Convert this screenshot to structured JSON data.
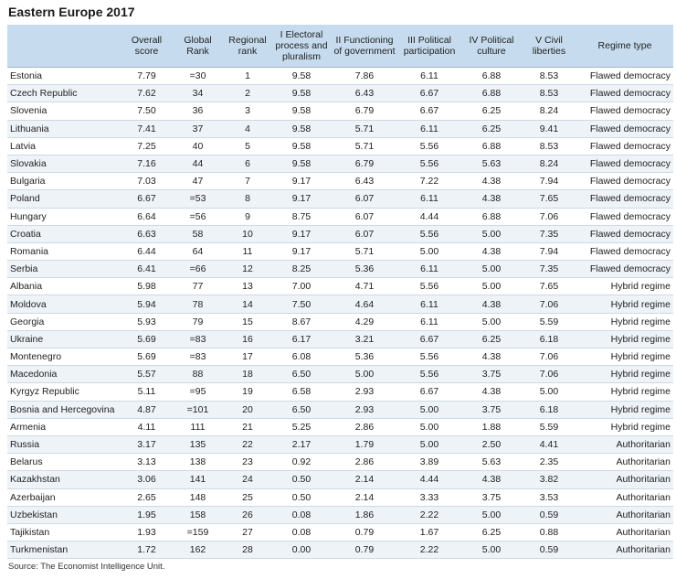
{
  "title": "Eastern Europe 2017",
  "table": {
    "header": [
      "",
      "Overall score",
      "Global Rank",
      "Regional rank",
      "I Electoral process and pluralism",
      "II Functioning of government",
      "III Political participation",
      "IV Political culture",
      "V Civil liberties",
      "Regime type"
    ],
    "rows": [
      [
        "Estonia",
        "7.79",
        "=30",
        "1",
        "9.58",
        "7.86",
        "6.11",
        "6.88",
        "8.53",
        "Flawed democracy"
      ],
      [
        "Czech Republic",
        "7.62",
        "34",
        "2",
        "9.58",
        "6.43",
        "6.67",
        "6.88",
        "8.53",
        "Flawed democracy"
      ],
      [
        "Slovenia",
        "7.50",
        "36",
        "3",
        "9.58",
        "6.79",
        "6.67",
        "6.25",
        "8.24",
        "Flawed democracy"
      ],
      [
        "Lithuania",
        "7.41",
        "37",
        "4",
        "9.58",
        "5.71",
        "6.11",
        "6.25",
        "9.41",
        "Flawed democracy"
      ],
      [
        "Latvia",
        "7.25",
        "40",
        "5",
        "9.58",
        "5.71",
        "5.56",
        "6.88",
        "8.53",
        "Flawed democracy"
      ],
      [
        "Slovakia",
        "7.16",
        "44",
        "6",
        "9.58",
        "6.79",
        "5.56",
        "5.63",
        "8.24",
        "Flawed democracy"
      ],
      [
        "Bulgaria",
        "7.03",
        "47",
        "7",
        "9.17",
        "6.43",
        "7.22",
        "4.38",
        "7.94",
        "Flawed democracy"
      ],
      [
        "Poland",
        "6.67",
        "=53",
        "8",
        "9.17",
        "6.07",
        "6.11",
        "4.38",
        "7.65",
        "Flawed democracy"
      ],
      [
        "Hungary",
        "6.64",
        "=56",
        "9",
        "8.75",
        "6.07",
        "4.44",
        "6.88",
        "7.06",
        "Flawed democracy"
      ],
      [
        "Croatia",
        "6.63",
        "58",
        "10",
        "9.17",
        "6.07",
        "5.56",
        "5.00",
        "7.35",
        "Flawed democracy"
      ],
      [
        "Romania",
        "6.44",
        "64",
        "11",
        "9.17",
        "5.71",
        "5.00",
        "4.38",
        "7.94",
        "Flawed democracy"
      ],
      [
        "Serbia",
        "6.41",
        "=66",
        "12",
        "8.25",
        "5.36",
        "6.11",
        "5.00",
        "7.35",
        "Flawed democracy"
      ],
      [
        "Albania",
        "5.98",
        "77",
        "13",
        "7.00",
        "4.71",
        "5.56",
        "5.00",
        "7.65",
        "Hybrid regime"
      ],
      [
        "Moldova",
        "5.94",
        "78",
        "14",
        "7.50",
        "4.64",
        "6.11",
        "4.38",
        "7.06",
        "Hybrid regime"
      ],
      [
        "Georgia",
        "5.93",
        "79",
        "15",
        "8.67",
        "4.29",
        "6.11",
        "5.00",
        "5.59",
        "Hybrid regime"
      ],
      [
        "Ukraine",
        "5.69",
        "=83",
        "16",
        "6.17",
        "3.21",
        "6.67",
        "6.25",
        "6.18",
        "Hybrid regime"
      ],
      [
        "Montenegro",
        "5.69",
        "=83",
        "17",
        "6.08",
        "5.36",
        "5.56",
        "4.38",
        "7.06",
        "Hybrid regime"
      ],
      [
        "Macedonia",
        "5.57",
        "88",
        "18",
        "6.50",
        "5.00",
        "5.56",
        "3.75",
        "7.06",
        "Hybrid regime"
      ],
      [
        "Kyrgyz Republic",
        "5.11",
        "=95",
        "19",
        "6.58",
        "2.93",
        "6.67",
        "4.38",
        "5.00",
        "Hybrid regime"
      ],
      [
        "Bosnia and Hercegovina",
        "4.87",
        "=101",
        "20",
        "6.50",
        "2.93",
        "5.00",
        "3.75",
        "6.18",
        "Hybrid regime"
      ],
      [
        "Armenia",
        "4.11",
        "111",
        "21",
        "5.25",
        "2.86",
        "5.00",
        "1.88",
        "5.59",
        "Hybrid regime"
      ],
      [
        "Russia",
        "3.17",
        "135",
        "22",
        "2.17",
        "1.79",
        "5.00",
        "2.50",
        "4.41",
        "Authoritarian"
      ],
      [
        "Belarus",
        "3.13",
        "138",
        "23",
        "0.92",
        "2.86",
        "3.89",
        "5.63",
        "2.35",
        "Authoritarian"
      ],
      [
        "Kazakhstan",
        "3.06",
        "141",
        "24",
        "0.50",
        "2.14",
        "4.44",
        "4.38",
        "3.82",
        "Authoritarian"
      ],
      [
        "Azerbaijan",
        "2.65",
        "148",
        "25",
        "0.50",
        "2.14",
        "3.33",
        "3.75",
        "3.53",
        "Authoritarian"
      ],
      [
        "Uzbekistan",
        "1.95",
        "158",
        "26",
        "0.08",
        "1.86",
        "2.22",
        "5.00",
        "0.59",
        "Authoritarian"
      ],
      [
        "Tajikistan",
        "1.93",
        "=159",
        "27",
        "0.08",
        "0.79",
        "1.67",
        "6.25",
        "0.88",
        "Authoritarian"
      ],
      [
        "Turkmenistan",
        "1.72",
        "162",
        "28",
        "0.00",
        "0.79",
        "2.22",
        "5.00",
        "0.59",
        "Authoritarian"
      ]
    ]
  },
  "source": "Source: The Economist Intelligence Unit."
}
